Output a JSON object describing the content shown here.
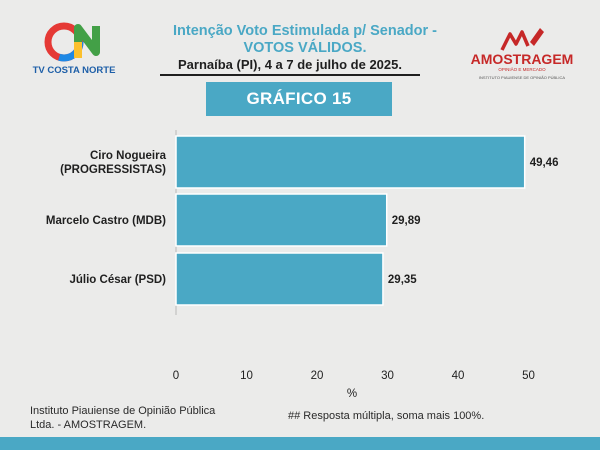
{
  "header": {
    "title_line1": "Intenção Voto Estimulada p/ Senador -",
    "title_line2": "VOTOS VÁLIDOS.",
    "subtitle": "Parnaíba (PI), 4 a 7 de julho de 2025.",
    "badge": "GRÁFICO 15"
  },
  "logos": {
    "left_text": "TV COSTA NORTE",
    "right_text": "AMOSTRAGEM",
    "right_tagline": "OPINIÃO E MERCADO",
    "right_subtext": "INSTITUTO PIAUIENSE DE OPINIÃO PÚBLICA"
  },
  "chart_data": {
    "type": "bar",
    "orientation": "horizontal",
    "categories": [
      "Ciro Nogueira (PROGRESSISTAS)",
      "Marcelo Castro (MDB)",
      "Júlio César (PSD)"
    ],
    "category_lines": [
      [
        "Ciro Nogueira",
        "(PROGRESSISTAS)"
      ],
      [
        "Marcelo Castro (MDB)"
      ],
      [
        "Júlio César (PSD)"
      ]
    ],
    "values": [
      49.46,
      29.89,
      29.35
    ],
    "value_labels": [
      "49,46",
      "29,89",
      "29,35"
    ],
    "xlabel": "%",
    "xlim": [
      0,
      55
    ],
    "xticks": [
      0,
      10,
      20,
      30,
      40,
      50
    ],
    "grid": false,
    "bar_color": "#4aa8c5"
  },
  "footer": {
    "source": "Instituto Piauiense de Opinião Pública Ltda. - AMOSTRAGEM.",
    "note": "## Resposta múltipla, soma mais 100%."
  },
  "colors": {
    "accent": "#4aa8c5",
    "background": "#ebebea"
  }
}
